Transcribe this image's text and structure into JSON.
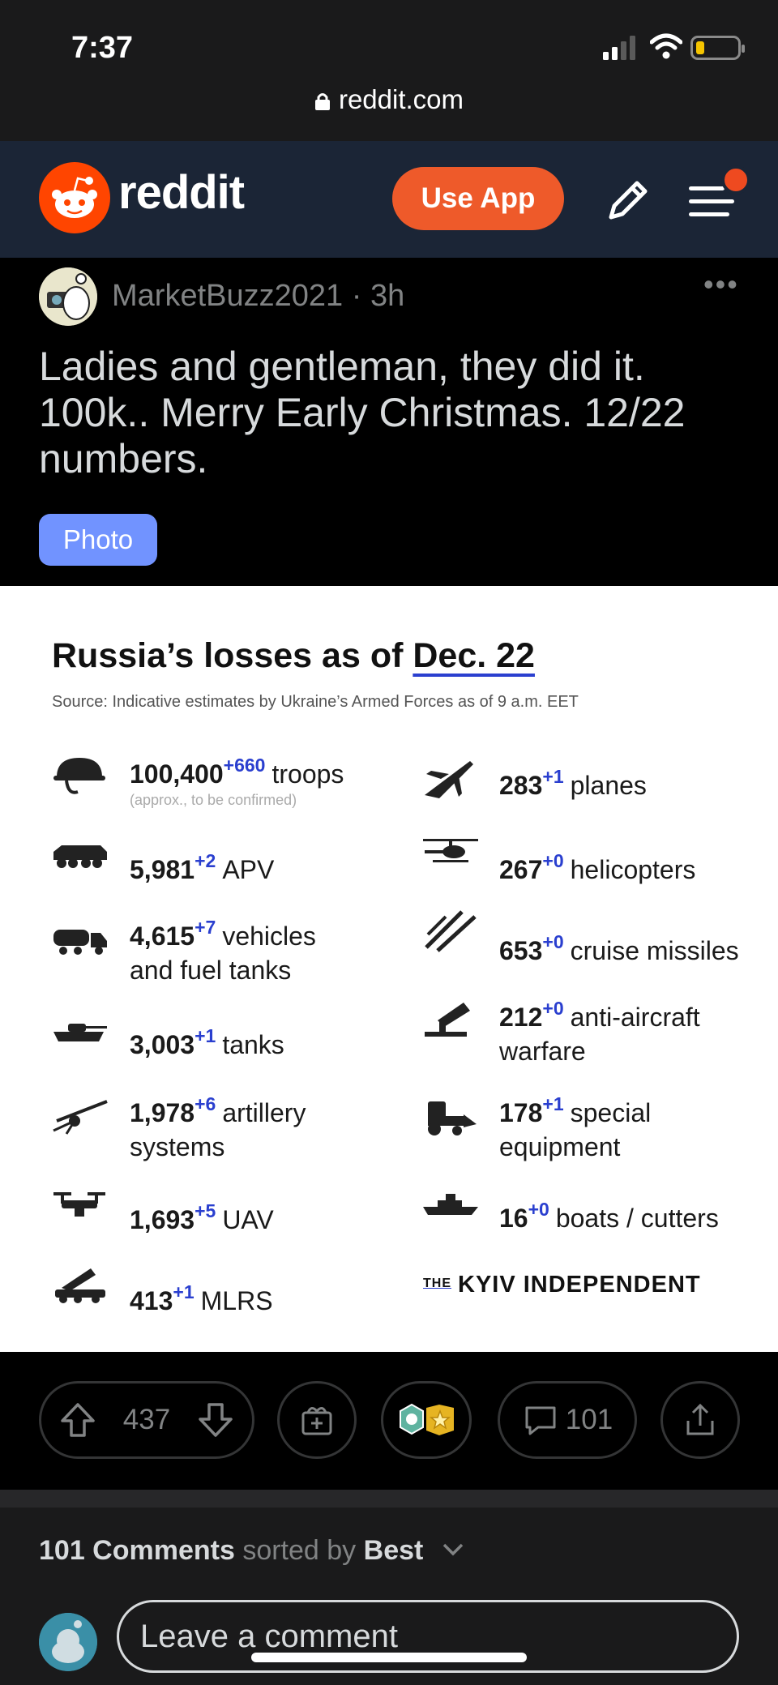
{
  "status": {
    "time": "7:37",
    "url": "reddit.com"
  },
  "header": {
    "brand": "reddit",
    "use_app": "Use App"
  },
  "post": {
    "author": "MarketBuzz2021",
    "age": "3h",
    "title": "Ladies and gentleman, they did it. 100k.. Merry Early Christmas. 12/22 numbers.",
    "flair": "Photo"
  },
  "image": {
    "title_pre": "Russia’s losses as of ",
    "title_date": "Dec. 22",
    "source": "Source: Indicative estimates by Ukraine’s Armed Forces as of 9 a.m. EET",
    "left": [
      {
        "num": "100,400",
        "delta": "+660",
        "label": "troops",
        "sub": "(approx., to be confirmed)",
        "icon": "helmet-icon"
      },
      {
        "num": "5,981",
        "delta": "+2",
        "label": "APV",
        "icon": "apv-icon"
      },
      {
        "num": "4,615",
        "delta": "+7",
        "label": "vehicles",
        "label2": "and fuel tanks",
        "icon": "truck-icon"
      },
      {
        "num": "3,003",
        "delta": "+1",
        "label": "tanks",
        "icon": "tank-icon"
      },
      {
        "num": "1,978",
        "delta": "+6",
        "label": "artillery",
        "label2": "systems",
        "icon": "artillery-icon"
      },
      {
        "num": "1,693",
        "delta": "+5",
        "label": "UAV",
        "icon": "drone-icon"
      },
      {
        "num": "413",
        "delta": "+1",
        "label": "MLRS",
        "icon": "mlrs-icon"
      }
    ],
    "right": [
      {
        "num": "283",
        "delta": "+1",
        "label": "planes",
        "icon": "plane-icon"
      },
      {
        "num": "267",
        "delta": "+0",
        "label": "helicopters",
        "icon": "helicopter-icon"
      },
      {
        "num": "653",
        "delta": "+0",
        "label": "cruise missiles",
        "icon": "missile-icon"
      },
      {
        "num": "212",
        "delta": "+0",
        "label": "anti-aircraft",
        "label2": "warfare",
        "icon": "anti-aircraft-icon"
      },
      {
        "num": "178",
        "delta": "+1",
        "label": "special",
        "label2": "equipment",
        "icon": "loader-icon"
      },
      {
        "num": "16",
        "delta": "+0",
        "label": "boats / cutters",
        "icon": "boat-icon"
      }
    ],
    "brand_the": "THE",
    "brand": "KYIV INDEPENDENT"
  },
  "actions": {
    "votes": "437",
    "comments": "101"
  },
  "comments": {
    "count_label": "101 Comments",
    "sorted_by": "sorted by",
    "sort": "Best",
    "placeholder": "Leave a comment"
  }
}
